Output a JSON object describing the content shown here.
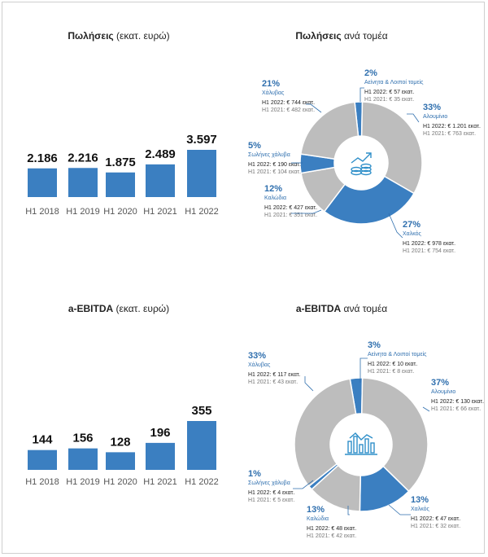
{
  "colors": {
    "blue": "#3b7fc1",
    "grey": "#bdbdbd",
    "label_blue": "#2f6fae"
  },
  "chart_data": [
    {
      "type": "bar",
      "title_bold": "Πωλήσεις",
      "title_rest": " (εκατ. ευρώ)",
      "categories": [
        "H1 2018",
        "H1 2019",
        "H1 2020",
        "H1 2021",
        "H1 2022"
      ],
      "values": [
        2186,
        2216,
        1875,
        2489,
        3597
      ],
      "value_labels": [
        "2.186",
        "2.216",
        "1.875",
        "2.489",
        "3.597"
      ]
    },
    {
      "type": "pie",
      "title_bold": "Πωλήσεις",
      "title_rest": " ανά τομέα",
      "icon": "coins-growth-icon",
      "segments": [
        {
          "name": "Αλουμίνιο",
          "pct_label": "33%",
          "value": 33,
          "line1": "H1 2022: € 1.201 εκατ.",
          "line2": "H1 2021: € 763 εκατ.",
          "highlight": false
        },
        {
          "name": "Χαλκός",
          "pct_label": "27%",
          "value": 27,
          "line1": "H1 2022: € 978 εκατ.",
          "line2": "H1 2021: € 754 εκατ.",
          "highlight": true
        },
        {
          "name": "Καλώδια",
          "pct_label": "12%",
          "value": 12,
          "line1": "H1 2022: € 427 εκατ.",
          "line2": "H1 2021: € 351 εκατ.",
          "highlight": false
        },
        {
          "name": "Σωλήνες χάλυβα",
          "pct_label": "5%",
          "value": 5,
          "line1": "H1 2022: € 190 εκατ.",
          "line2": "H1 2021: € 104 εκατ.",
          "highlight": true
        },
        {
          "name": "Χάλυβας",
          "pct_label": "21%",
          "value": 21,
          "line1": "H1 2022: € 744 εκατ.",
          "line2": "H1 2021: € 482 εκατ.",
          "highlight": false
        },
        {
          "name": "Αείνητα & Λοιποί τομείς",
          "pct_label": "2%",
          "value": 2,
          "line1": "H1 2022: € 57 εκατ.",
          "line2": "H1 2021: € 35 εκατ.",
          "highlight": true
        }
      ]
    },
    {
      "type": "bar",
      "title_bold": "a-EBITDA",
      "title_rest": " (εκατ. ευρώ)",
      "categories": [
        "H1 2018",
        "H1 2019",
        "H1 2020",
        "H1 2021",
        "H1 2022"
      ],
      "values": [
        144,
        156,
        128,
        196,
        355
      ],
      "value_labels": [
        "144",
        "156",
        "128",
        "196",
        "355"
      ]
    },
    {
      "type": "pie",
      "title_bold": "a-EBITDA",
      "title_rest": " ανά τομέα",
      "icon": "bar-chart-icon",
      "segments": [
        {
          "name": "Αλουμίνιο",
          "pct_label": "37%",
          "value": 37,
          "line1": "H1 2022: € 130 εκατ.",
          "line2": "H1 2021: € 66 εκατ.",
          "highlight": false
        },
        {
          "name": "Χαλκός",
          "pct_label": "13%",
          "value": 13,
          "line1": "H1 2022: € 47 εκατ.",
          "line2": "H1 2021: € 32 εκατ.",
          "highlight": true
        },
        {
          "name": "Καλώδια",
          "pct_label": "13%",
          "value": 13,
          "line1": "H1 2022: € 48 εκατ.",
          "line2": "H1 2021: € 42 εκατ.",
          "highlight": false
        },
        {
          "name": "Σωλήνες χάλυβα",
          "pct_label": "1%",
          "value": 1,
          "line1": "H1 2022: € 4 εκατ.",
          "line2": "H1 2021: € 5 εκατ.",
          "highlight": true
        },
        {
          "name": "Χάλυβας",
          "pct_label": "33%",
          "value": 33,
          "line1": "H1 2022: € 117 εκατ.",
          "line2": "H1 2021: € 43 εκατ.",
          "highlight": false
        },
        {
          "name": "Αείνητα & Λοιποί τομείς",
          "pct_label": "3%",
          "value": 3,
          "line1": "H1 2022: € 10 εκατ.",
          "line2": "H1 2021: € 8 εκατ.",
          "highlight": true
        }
      ]
    }
  ]
}
